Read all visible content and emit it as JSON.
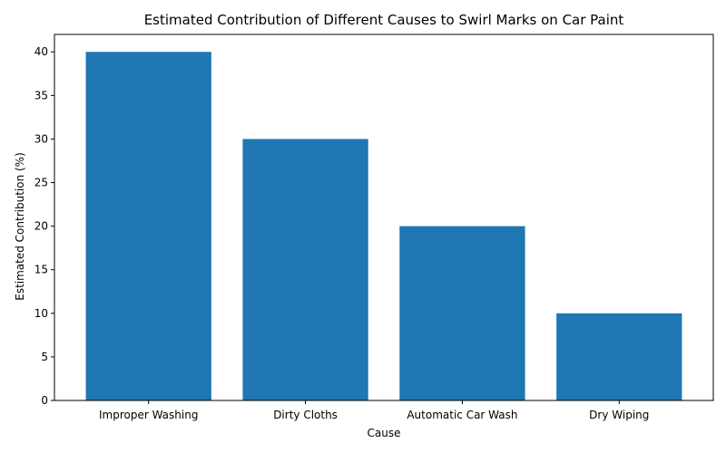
{
  "chart_data": {
    "type": "bar",
    "title": "Estimated Contribution of Different Causes to Swirl Marks on Car Paint",
    "xlabel": "Cause",
    "ylabel": "Estimated Contribution (%)",
    "categories": [
      "Improper Washing",
      "Dirty Cloths",
      "Automatic Car Wash",
      "Dry Wiping"
    ],
    "values": [
      40,
      30,
      20,
      10
    ],
    "ylim": [
      0,
      42
    ],
    "yticks": [
      0,
      5,
      10,
      15,
      20,
      25,
      30,
      35,
      40
    ],
    "bar_color": "#1f77b4",
    "grid": false,
    "legend": false
  }
}
